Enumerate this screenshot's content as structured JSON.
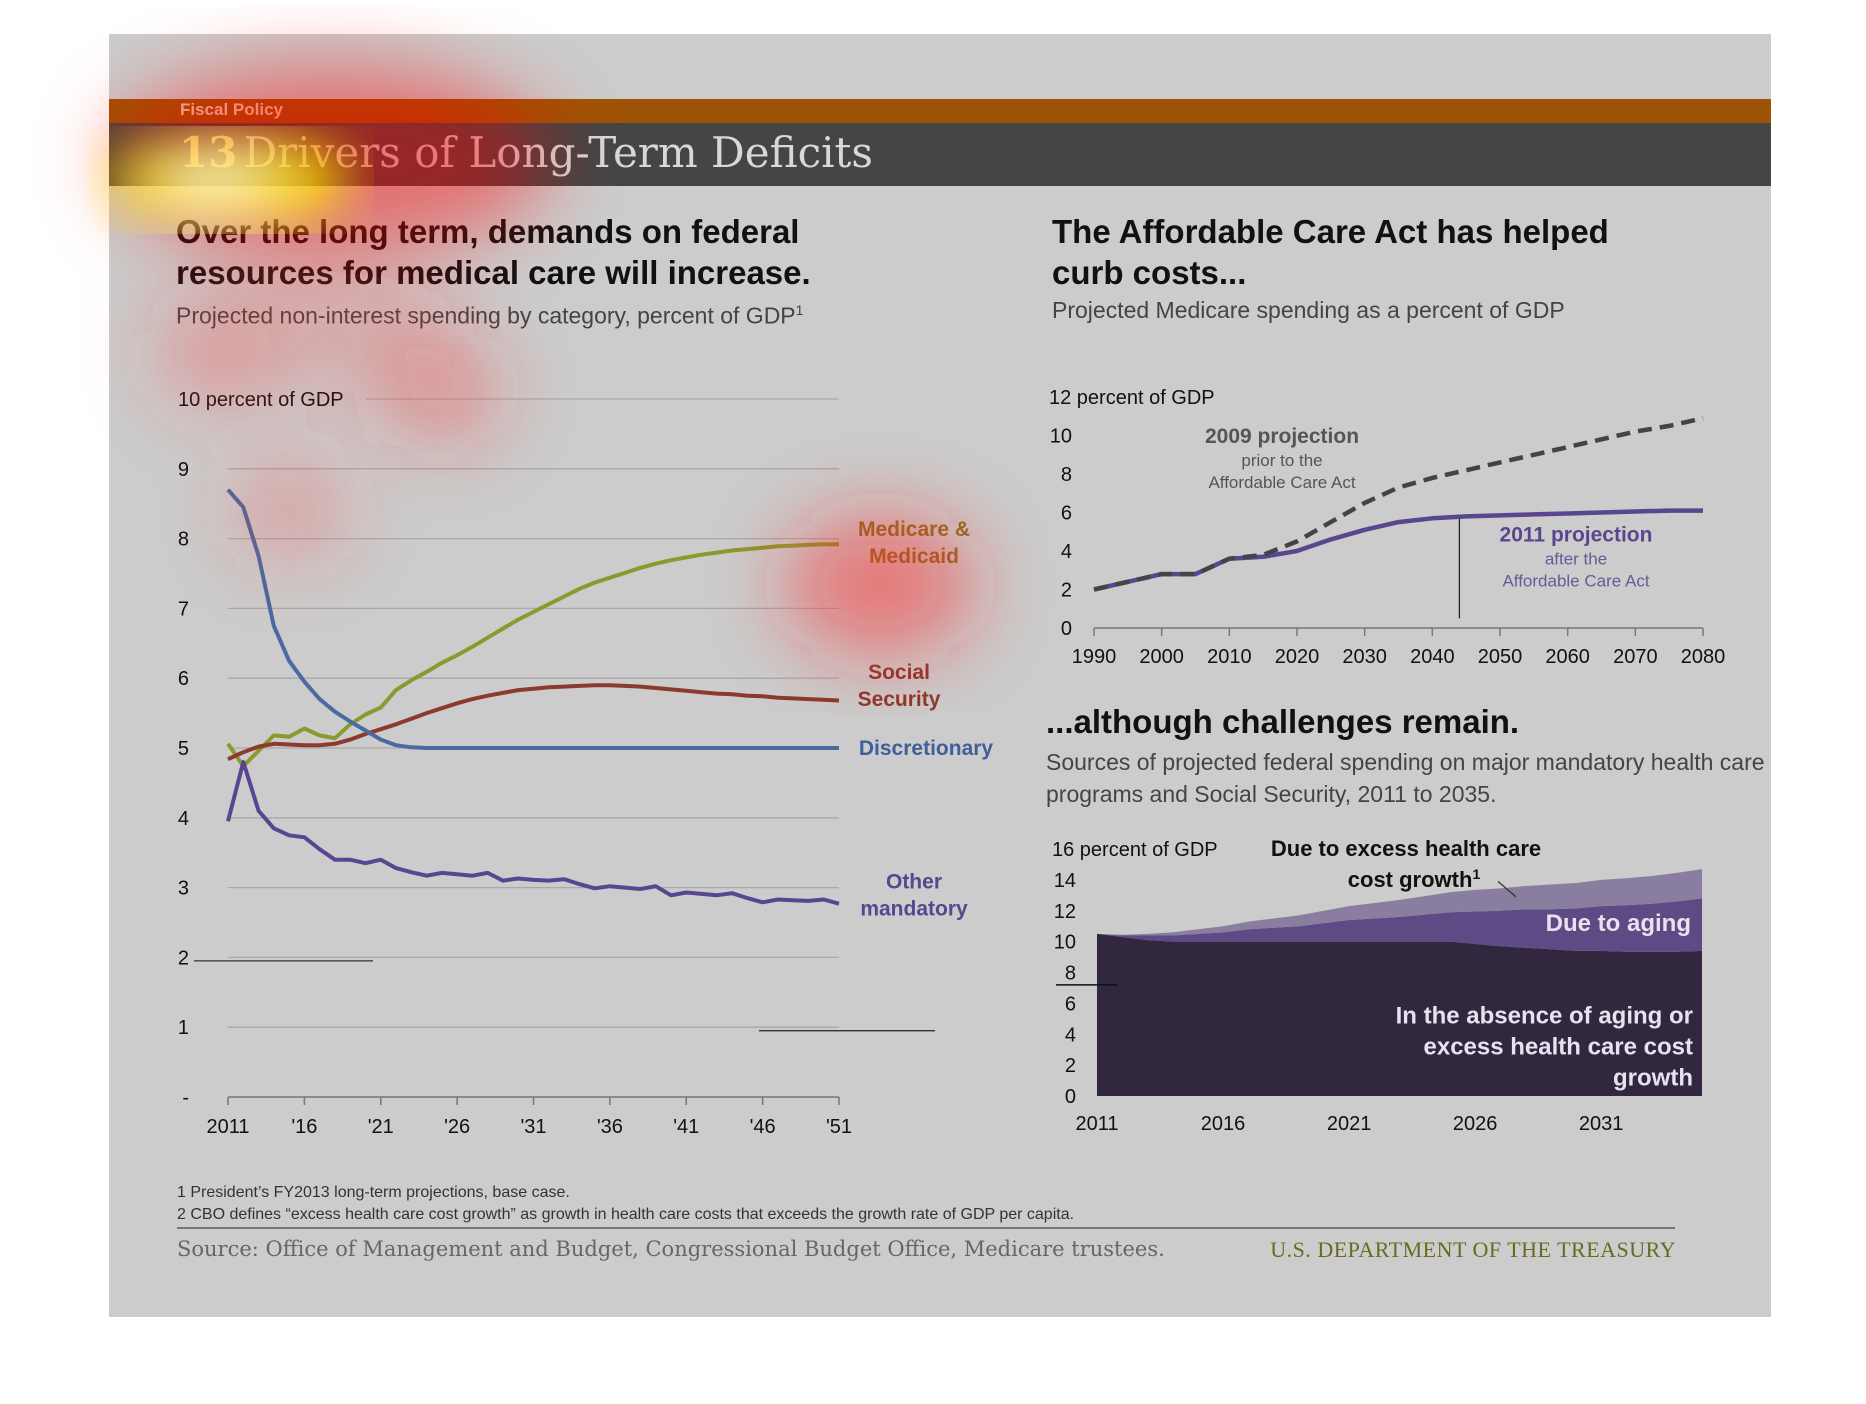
{
  "header": {
    "section_label": "Fiscal Policy",
    "slide_number": "13",
    "title": "Drivers of Long-Term Deficits"
  },
  "left_panel": {
    "heading_line1": "Over the long term, demands on federal",
    "heading_line2": "resources for medical care will increase.",
    "subheading": "Projected non-interest spending by category, percent of GDP",
    "subheading_sup": "1"
  },
  "right_top": {
    "heading_line1": "The Affordable Care Act has helped",
    "heading_line2": "curb costs...",
    "subheading": "Projected Medicare spending as a percent of GDP"
  },
  "right_bottom": {
    "heading": "...although challenges remain.",
    "subheading_line1": "Sources of projected federal spending on major mandatory health care",
    "subheading_line2": "programs and Social Security, 2011 to 2035."
  },
  "chart_data": [
    {
      "type": "line",
      "ylabel": "10 percent of GDP",
      "ylim": [
        0,
        10
      ],
      "yticks": [
        "-",
        "1",
        "2",
        "3",
        "4",
        "5",
        "6",
        "7",
        "8",
        "9"
      ],
      "xticks": [
        "2011",
        "'16",
        "'21",
        "'26",
        "'31",
        "'36",
        "'41",
        "'46",
        "'51"
      ],
      "xlim": [
        2011,
        2051
      ],
      "grid": true,
      "x": [
        2011,
        2012,
        2013,
        2014,
        2015,
        2016,
        2017,
        2018,
        2019,
        2020,
        2021,
        2022,
        2023,
        2024,
        2025,
        2026,
        2027,
        2028,
        2029,
        2030,
        2031,
        2032,
        2033,
        2034,
        2035,
        2036,
        2037,
        2038,
        2039,
        2040,
        2041,
        2042,
        2043,
        2044,
        2045,
        2046,
        2047,
        2048,
        2049,
        2050,
        2051
      ],
      "series": [
        {
          "name": "Medicare & Medicaid",
          "label_line1": "Medicare &",
          "label_line2": "Medicaid",
          "color": "#8a9a2e",
          "label_color": "#8a7320",
          "values": [
            5.06,
            4.74,
            4.96,
            5.18,
            5.16,
            5.28,
            5.18,
            5.14,
            5.34,
            5.48,
            5.58,
            5.83,
            5.97,
            6.09,
            6.22,
            6.33,
            6.45,
            6.58,
            6.71,
            6.84,
            6.95,
            7.06,
            7.17,
            7.28,
            7.37,
            7.44,
            7.51,
            7.58,
            7.64,
            7.69,
            7.73,
            7.77,
            7.8,
            7.83,
            7.85,
            7.87,
            7.89,
            7.9,
            7.91,
            7.92,
            7.92
          ]
        },
        {
          "name": "Social Security",
          "label_line1": "Social",
          "label_line2": "Security",
          "color": "#8b3a2e",
          "label_color": "#8b3a2e",
          "values": [
            4.84,
            4.94,
            5.02,
            5.06,
            5.05,
            5.04,
            5.04,
            5.06,
            5.12,
            5.2,
            5.27,
            5.34,
            5.42,
            5.5,
            5.57,
            5.64,
            5.7,
            5.75,
            5.79,
            5.83,
            5.85,
            5.87,
            5.88,
            5.89,
            5.9,
            5.9,
            5.89,
            5.88,
            5.86,
            5.84,
            5.82,
            5.8,
            5.78,
            5.77,
            5.75,
            5.74,
            5.72,
            5.71,
            5.7,
            5.69,
            5.68
          ]
        },
        {
          "name": "Discretionary",
          "label_line1": "Discretionary",
          "label_line2": "",
          "color": "#4a6aa0",
          "label_color": "#3f5f9a",
          "values": [
            8.7,
            8.45,
            7.75,
            6.75,
            6.25,
            5.95,
            5.7,
            5.52,
            5.38,
            5.25,
            5.12,
            5.04,
            5.01,
            5.0,
            5.0,
            5.0,
            5.0,
            5.0,
            5.0,
            5.0,
            5.0,
            5.0,
            5.0,
            5.0,
            5.0,
            5.0,
            5.0,
            5.0,
            5.0,
            5.0,
            5.0,
            5.0,
            5.0,
            5.0,
            5.0,
            5.0,
            5.0,
            5.0,
            5.0,
            5.0,
            5.0
          ]
        },
        {
          "name": "Other mandatory",
          "label_line1": "Other",
          "label_line2": "mandatory",
          "color": "#5a4690",
          "label_color": "#574690",
          "values": [
            3.95,
            4.8,
            4.1,
            3.85,
            3.75,
            3.72,
            3.55,
            3.4,
            3.4,
            3.35,
            3.4,
            3.28,
            3.22,
            3.17,
            3.21,
            3.19,
            3.17,
            3.21,
            3.1,
            3.13,
            3.11,
            3.1,
            3.12,
            3.05,
            2.99,
            3.02,
            3.0,
            2.98,
            3.02,
            2.89,
            2.93,
            2.91,
            2.89,
            2.92,
            2.85,
            2.79,
            2.83,
            2.82,
            2.81,
            2.83,
            2.77
          ]
        }
      ]
    },
    {
      "type": "line",
      "ylabel": "12 percent of GDP",
      "ylim": [
        0,
        12
      ],
      "yticks": [
        "0",
        "2",
        "4",
        "6",
        "8",
        "10"
      ],
      "xticks": [
        "1990",
        "2000",
        "2010",
        "2020",
        "2030",
        "2040",
        "2050",
        "2060",
        "2070",
        "2080"
      ],
      "xlim": [
        1990,
        2080
      ],
      "x": [
        1990,
        1995,
        2000,
        2005,
        2010,
        2015,
        2020,
        2025,
        2030,
        2035,
        2040,
        2045,
        2050,
        2055,
        2060,
        2065,
        2070,
        2075,
        2080
      ],
      "series": [
        {
          "name": "2009 projection",
          "note_line1": "prior to the",
          "note_line2": "Affordable Care Act",
          "color": "#444444",
          "dashed": true,
          "values": [
            2.0,
            2.4,
            2.8,
            2.8,
            3.6,
            3.8,
            4.5,
            5.5,
            6.5,
            7.3,
            7.8,
            8.2,
            8.6,
            9.0,
            9.4,
            9.8,
            10.2,
            10.5,
            10.9
          ]
        },
        {
          "name": "2011 projection",
          "note_line1": "after the",
          "note_line2": "Affordable Care Act",
          "color": "#5a4690",
          "dashed": false,
          "values": [
            2.0,
            2.4,
            2.8,
            2.8,
            3.6,
            3.7,
            4.0,
            4.6,
            5.1,
            5.5,
            5.7,
            5.8,
            5.85,
            5.9,
            5.95,
            6.0,
            6.05,
            6.1,
            6.1
          ]
        }
      ]
    },
    {
      "type": "area",
      "ylabel": "16 percent of GDP",
      "ylim": [
        0,
        16
      ],
      "yticks": [
        "0",
        "2",
        "4",
        "6",
        "8",
        "10",
        "12",
        "14"
      ],
      "xticks": [
        "2011",
        "2016",
        "2021",
        "2026",
        "2031"
      ],
      "xlim": [
        2011,
        2035
      ],
      "x": [
        2011,
        2012,
        2013,
        2014,
        2015,
        2016,
        2017,
        2018,
        2019,
        2020,
        2021,
        2022,
        2023,
        2024,
        2025,
        2026,
        2027,
        2028,
        2029,
        2030,
        2031,
        2032,
        2033,
        2034,
        2035
      ],
      "series": [
        {
          "name": "In the absence of aging or excess health care cost growth",
          "label_line1": "In the absence of aging or",
          "label_line2": "excess health care cost",
          "label_line3": "growth",
          "color": "#312840",
          "values": [
            10.5,
            10.3,
            10.1,
            10.0,
            10.0,
            10.0,
            10.0,
            10.0,
            10.0,
            10.0,
            10.0,
            10.0,
            10.0,
            10.0,
            10.0,
            9.85,
            9.7,
            9.6,
            9.5,
            9.4,
            9.4,
            9.35,
            9.35,
            9.35,
            9.4
          ]
        },
        {
          "name": "Due to aging",
          "label_line1": "Due to aging",
          "color": "#5e4a84",
          "values": [
            0.0,
            0.1,
            0.3,
            0.4,
            0.5,
            0.6,
            0.8,
            0.9,
            1.0,
            1.2,
            1.4,
            1.5,
            1.6,
            1.75,
            1.9,
            2.1,
            2.3,
            2.5,
            2.6,
            2.75,
            2.9,
            3.0,
            3.1,
            3.25,
            3.4
          ]
        },
        {
          "name": "Due to excess health care cost growth",
          "label_line1": "Due to excess  health care",
          "label_line2": "cost growth",
          "label_sup": "1",
          "color": "#8a7ea0",
          "values": [
            0.0,
            0.05,
            0.1,
            0.2,
            0.3,
            0.4,
            0.5,
            0.6,
            0.7,
            0.8,
            0.9,
            1.0,
            1.1,
            1.2,
            1.3,
            1.4,
            1.45,
            1.5,
            1.6,
            1.65,
            1.7,
            1.75,
            1.8,
            1.85,
            1.9
          ]
        }
      ]
    }
  ],
  "footnotes": {
    "note1": "1 President’s FY2013 long-term projections, base case.",
    "note2": "2 CBO defines “excess health care cost growth” as growth in health care costs that exceeds the growth rate of GDP per capita."
  },
  "footer": {
    "source": "Source: Office of Management and Budget, Congressional Budget Office, Medicare trustees.",
    "department": "U.S. DEPARTMENT OF THE TREASURY"
  }
}
